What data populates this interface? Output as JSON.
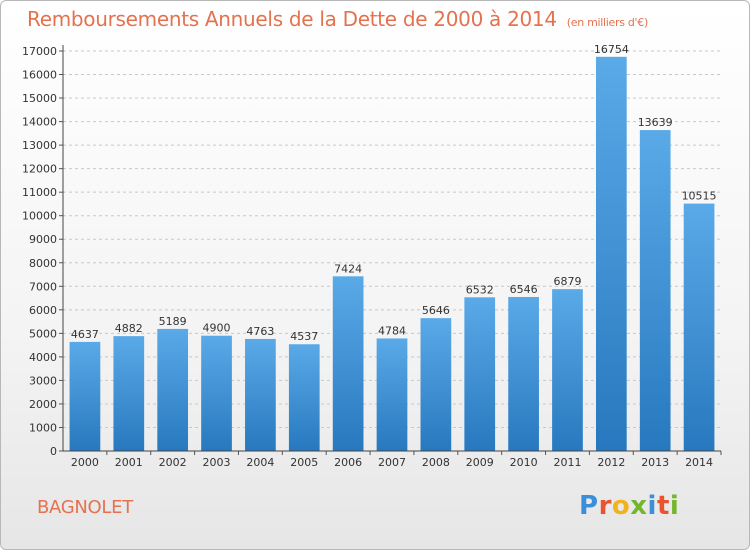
{
  "title": "Remboursements Annuels de la Dette de 2000 à 2014",
  "subtitle": "(en milliers d'€)",
  "city": "BAGNOLET",
  "logo": {
    "letters": [
      "P",
      "r",
      "o",
      "x",
      "i",
      "t",
      "i"
    ],
    "colors": [
      "#3a8fd8",
      "#e8542f",
      "#f1b21f",
      "#74b72e",
      "#3a8fd8",
      "#e8542f",
      "#74b72e"
    ]
  },
  "colors": {
    "bar_top": "#5aaae8",
    "bar_bottom": "#2878bf",
    "grid": "#c8c8c8",
    "title": "#e4724f"
  },
  "chart_data": {
    "type": "bar",
    "title": "Remboursements Annuels de la Dette de 2000 à 2014",
    "subtitle": "(en milliers d'€)",
    "categories": [
      "2000",
      "2001",
      "2002",
      "2003",
      "2004",
      "2005",
      "2006",
      "2007",
      "2008",
      "2009",
      "2010",
      "2011",
      "2012",
      "2013",
      "2014"
    ],
    "values": [
      4637,
      4882,
      5189,
      4900,
      4763,
      4537,
      7424,
      4784,
      5646,
      6532,
      6546,
      6879,
      16754,
      13639,
      10515
    ],
    "ylim": [
      0,
      17000
    ],
    "yticks": [
      0,
      1000,
      2000,
      3000,
      4000,
      5000,
      6000,
      7000,
      8000,
      9000,
      10000,
      11000,
      12000,
      13000,
      14000,
      15000,
      16000,
      17000
    ],
    "grid": true,
    "data_labels": true
  }
}
